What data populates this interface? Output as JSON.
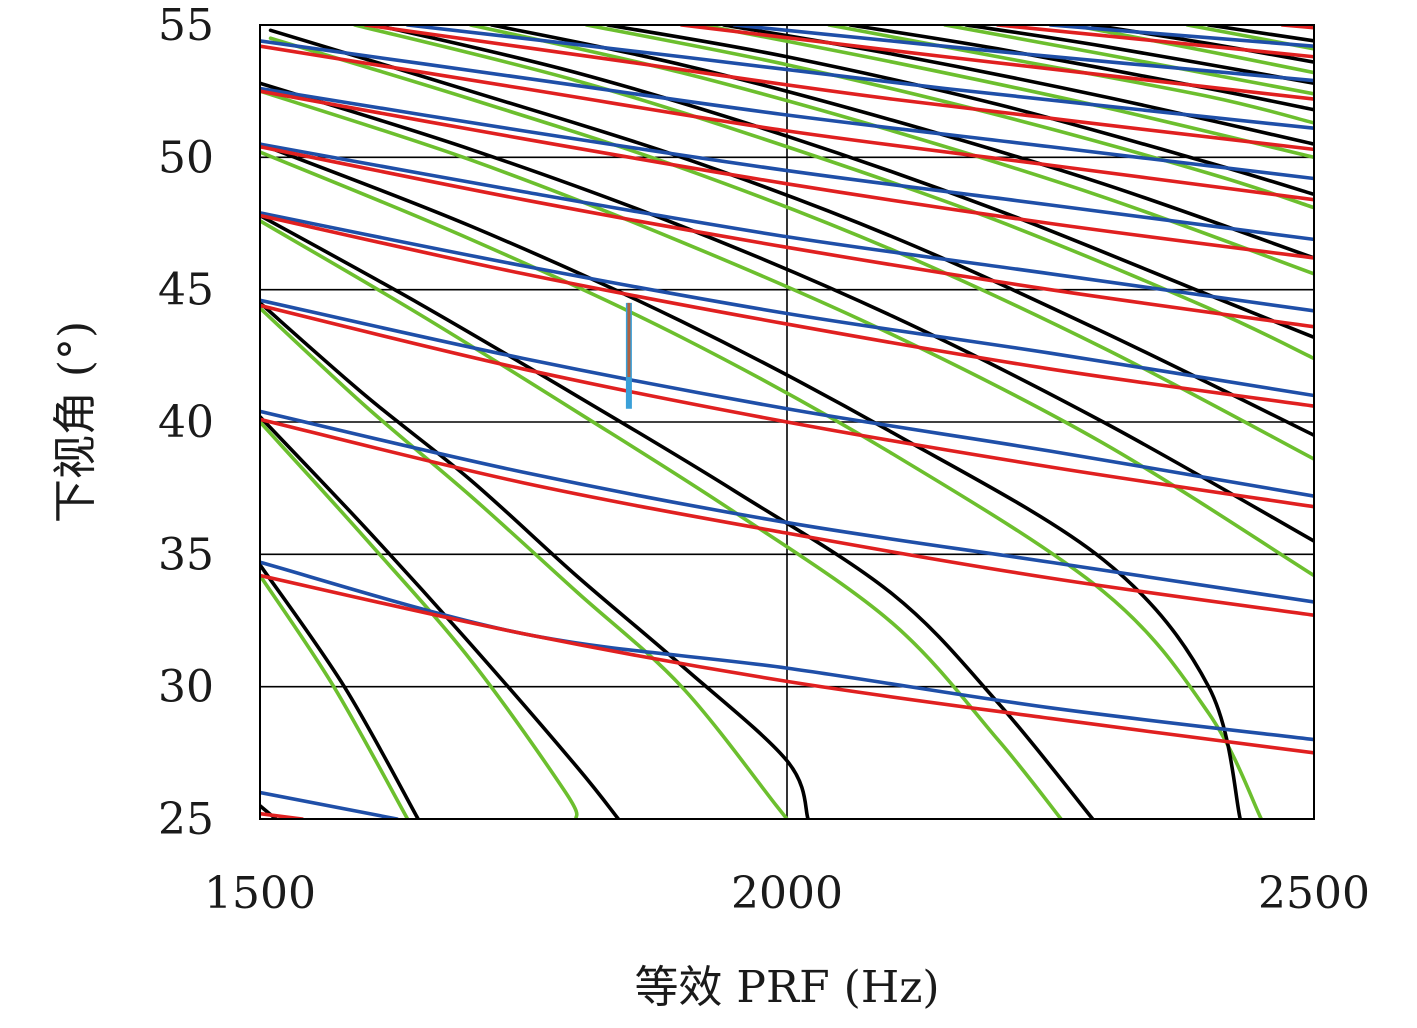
{
  "chart_data": {
    "type": "line",
    "title": "",
    "xlabel": "等效 PRF (Hz)",
    "ylabel": "下视角 (°)",
    "xlim": [
      1500,
      2500
    ],
    "ylim": [
      25,
      55
    ],
    "x_ticks": [
      "1500",
      "2000",
      "2500"
    ],
    "y_ticks": [
      "25",
      "30",
      "35",
      "40",
      "45",
      "50",
      "55"
    ],
    "grid": "x=2000 and y=30,35,40,45,50 (black lines)",
    "legend": "none",
    "colors": {
      "transmit_interference_black": "#000000",
      "transmit_interference_green": "#6cbf2e",
      "nadir_echo_blue": "#1f4fa8",
      "nadir_echo_red": "#e02020",
      "design_point_marker": "#3aa0d8"
    },
    "series": [
      {
        "color": "black",
        "kind": "transmit-interference bands",
        "lines": [
          [
            [
              1500,
              25.5
            ],
            [
              1515,
              25
            ]
          ],
          [
            [
              1500,
              34.6
            ],
            [
              1580,
              30.0
            ],
            [
              1650,
              25
            ]
          ],
          [
            [
              1500,
              40.2
            ],
            [
              1600,
              36.0
            ],
            [
              1700,
              31.6
            ],
            [
              1800,
              27.0
            ],
            [
              1840,
              25
            ]
          ],
          [
            [
              1500,
              44.5
            ],
            [
              1600,
              41.0
            ],
            [
              1700,
              37.8
            ],
            [
              1800,
              34.2
            ],
            [
              1900,
              30.8
            ],
            [
              2000,
              27.2
            ],
            [
              2020,
              25
            ]
          ],
          [
            [
              1500,
              47.8
            ],
            [
              1650,
              44.5
            ],
            [
              1800,
              41.0
            ],
            [
              1950,
              37.4
            ],
            [
              2100,
              33.5
            ],
            [
              2200,
              29.4
            ],
            [
              2290,
              25
            ]
          ],
          [
            [
              1500,
              50.5
            ],
            [
              1700,
              47.4
            ],
            [
              1900,
              43.8
            ],
            [
              2100,
              39.6
            ],
            [
              2300,
              34.8
            ],
            [
              2400,
              30.0
            ],
            [
              2430,
              25
            ]
          ],
          [
            [
              1500,
              52.8
            ],
            [
              1700,
              50.3
            ],
            [
              1900,
              47.4
            ],
            [
              2100,
              44.0
            ],
            [
              2300,
              40.0
            ],
            [
              2500,
              35.5
            ]
          ],
          [
            [
              1510,
              54.8
            ],
            [
              1700,
              52.5
            ],
            [
              1900,
              50.0
            ],
            [
              2100,
              47.0
            ],
            [
              2300,
              43.4
            ],
            [
              2500,
              39.5
            ]
          ],
          [
            [
              1610,
              55.0
            ],
            [
              1800,
              53.2
            ],
            [
              2000,
              50.8
            ],
            [
              2200,
              48.0
            ],
            [
              2400,
              44.8
            ],
            [
              2500,
              43.2
            ]
          ],
          [
            [
              1720,
              55.0
            ],
            [
              1900,
              53.5
            ],
            [
              2100,
              51.4
            ],
            [
              2300,
              49.0
            ],
            [
              2500,
              46.2
            ]
          ],
          [
            [
              1830,
              55.0
            ],
            [
              2000,
              53.8
            ],
            [
              2200,
              52.0
            ],
            [
              2400,
              49.8
            ],
            [
              2500,
              48.6
            ]
          ],
          [
            [
              1940,
              55.0
            ],
            [
              2100,
              53.9
            ],
            [
              2300,
              52.3
            ],
            [
              2500,
              50.5
            ]
          ],
          [
            [
              2060,
              55.0
            ],
            [
              2200,
              54.1
            ],
            [
              2400,
              52.6
            ],
            [
              2500,
              51.8
            ]
          ],
          [
            [
              2170,
              55.0
            ],
            [
              2300,
              54.2
            ],
            [
              2500,
              52.8
            ]
          ],
          [
            [
              2290,
              55.0
            ],
            [
              2400,
              54.3
            ],
            [
              2500,
              53.6
            ]
          ],
          [
            [
              2400,
              55.0
            ],
            [
              2500,
              54.4
            ]
          ]
        ]
      },
      {
        "color": "green",
        "kind": "transmit-interference bands",
        "lines": [
          [
            [
              1500,
              34.2
            ],
            [
              1570,
              30.0
            ],
            [
              1640,
              25
            ]
          ],
          [
            [
              1500,
              40.0
            ],
            [
              1600,
              35.6
            ],
            [
              1700,
              31.0
            ],
            [
              1790,
              26.0
            ],
            [
              1800,
              25
            ]
          ],
          [
            [
              1500,
              44.3
            ],
            [
              1600,
              40.6
            ],
            [
              1700,
              37.2
            ],
            [
              1800,
              33.6
            ],
            [
              1900,
              30.0
            ],
            [
              1990,
              25.5
            ],
            [
              2000,
              25
            ]
          ],
          [
            [
              1500,
              47.6
            ],
            [
              1650,
              44.1
            ],
            [
              1800,
              40.4
            ],
            [
              1950,
              36.6
            ],
            [
              2100,
              32.4
            ],
            [
              2200,
              28.0
            ],
            [
              2260,
              25
            ]
          ],
          [
            [
              1500,
              50.2
            ],
            [
              1700,
              46.9
            ],
            [
              1900,
              43.2
            ],
            [
              2100,
              38.8
            ],
            [
              2300,
              33.6
            ],
            [
              2400,
              29.0
            ],
            [
              2450,
              25
            ]
          ],
          [
            [
              1500,
              52.5
            ],
            [
              1700,
              49.9
            ],
            [
              1900,
              46.8
            ],
            [
              2100,
              43.3
            ],
            [
              2300,
              39.2
            ],
            [
              2500,
              34.2
            ]
          ],
          [
            [
              1510,
              54.5
            ],
            [
              1700,
              52.2
            ],
            [
              1900,
              49.6
            ],
            [
              2100,
              46.5
            ],
            [
              2300,
              42.8
            ],
            [
              2500,
              38.6
            ]
          ],
          [
            [
              1590,
              55.0
            ],
            [
              1800,
              52.9
            ],
            [
              2000,
              50.4
            ],
            [
              2200,
              47.6
            ],
            [
              2400,
              44.3
            ],
            [
              2500,
              42.4
            ]
          ],
          [
            [
              1700,
              55.0
            ],
            [
              1900,
              53.2
            ],
            [
              2100,
              51.0
            ],
            [
              2300,
              48.5
            ],
            [
              2500,
              45.6
            ]
          ],
          [
            [
              1810,
              55.0
            ],
            [
              2000,
              53.5
            ],
            [
              2200,
              51.6
            ],
            [
              2400,
              49.4
            ],
            [
              2500,
              48.1
            ]
          ],
          [
            [
              1920,
              55.0
            ],
            [
              2100,
              53.6
            ],
            [
              2300,
              51.9
            ],
            [
              2500,
              50.0
            ]
          ],
          [
            [
              2040,
              55.0
            ],
            [
              2200,
              53.8
            ],
            [
              2400,
              52.3
            ],
            [
              2500,
              51.3
            ]
          ],
          [
            [
              2150,
              55.0
            ],
            [
              2300,
              53.9
            ],
            [
              2500,
              52.4
            ]
          ],
          [
            [
              2270,
              55.0
            ],
            [
              2400,
              54.0
            ],
            [
              2500,
              53.2
            ]
          ],
          [
            [
              2380,
              55.0
            ],
            [
              2500,
              54.1
            ]
          ]
        ]
      },
      {
        "color": "blue",
        "kind": "nadir-echo bands",
        "lines": [
          [
            [
              1500,
              26.0
            ],
            [
              1630,
              25.0
            ]
          ],
          [
            [
              1500,
              34.7
            ],
            [
              1750,
              32.0
            ],
            [
              2000,
              30.7
            ],
            [
              2250,
              29.2
            ],
            [
              2500,
              28.0
            ]
          ],
          [
            [
              1500,
              40.4
            ],
            [
              1750,
              38.1
            ],
            [
              2000,
              36.2
            ],
            [
              2250,
              34.7
            ],
            [
              2500,
              33.2
            ]
          ],
          [
            [
              1500,
              44.6
            ],
            [
              1750,
              42.4
            ],
            [
              2000,
              40.5
            ],
            [
              2250,
              38.9
            ],
            [
              2500,
              37.2
            ]
          ],
          [
            [
              1500,
              47.9
            ],
            [
              1750,
              45.9
            ],
            [
              2000,
              44.1
            ],
            [
              2250,
              42.6
            ],
            [
              2500,
              41.0
            ]
          ],
          [
            [
              1500,
              50.5
            ],
            [
              1750,
              48.7
            ],
            [
              2000,
              47.0
            ],
            [
              2250,
              45.6
            ],
            [
              2500,
              44.2
            ]
          ],
          [
            [
              1500,
              52.6
            ],
            [
              1750,
              51.0
            ],
            [
              2000,
              49.5
            ],
            [
              2250,
              48.2
            ],
            [
              2500,
              46.9
            ]
          ],
          [
            [
              1500,
              54.4
            ],
            [
              1750,
              53.0
            ],
            [
              2000,
              51.6
            ],
            [
              2250,
              50.4
            ],
            [
              2500,
              49.2
            ]
          ],
          [
            [
              1640,
              55.0
            ],
            [
              1900,
              53.8
            ],
            [
              2150,
              52.6
            ],
            [
              2500,
              51.1
            ]
          ],
          [
            [
              1950,
              55.0
            ],
            [
              2200,
              54.0
            ],
            [
              2500,
              52.9
            ]
          ],
          [
            [
              2250,
              55.0
            ],
            [
              2500,
              54.2
            ]
          ]
        ]
      },
      {
        "color": "red",
        "kind": "nadir-echo bands",
        "lines": [
          [
            [
              1500,
              25.2
            ],
            [
              1540,
              25.0
            ]
          ],
          [
            [
              1500,
              34.2
            ],
            [
              1750,
              32.0
            ],
            [
              2000,
              30.2
            ],
            [
              2250,
              28.8
            ],
            [
              2500,
              27.5
            ]
          ],
          [
            [
              1500,
              40.1
            ],
            [
              1750,
              37.7
            ],
            [
              2000,
              35.8
            ],
            [
              2250,
              34.1
            ],
            [
              2500,
              32.7
            ]
          ],
          [
            [
              1500,
              44.4
            ],
            [
              1750,
              42.0
            ],
            [
              2000,
              40.0
            ],
            [
              2250,
              38.3
            ],
            [
              2500,
              36.8
            ]
          ],
          [
            [
              1500,
              47.8
            ],
            [
              1750,
              45.6
            ],
            [
              2000,
              43.7
            ],
            [
              2250,
              42.0
            ],
            [
              2500,
              40.6
            ]
          ],
          [
            [
              1500,
              50.4
            ],
            [
              1750,
              48.4
            ],
            [
              2000,
              46.6
            ],
            [
              2250,
              45.0
            ],
            [
              2500,
              43.6
            ]
          ],
          [
            [
              1500,
              52.5
            ],
            [
              1750,
              50.7
            ],
            [
              2000,
              49.0
            ],
            [
              2250,
              47.5
            ],
            [
              2500,
              46.2
            ]
          ],
          [
            [
              1500,
              54.2
            ],
            [
              1750,
              52.6
            ],
            [
              2000,
              51.0
            ],
            [
              2250,
              49.7
            ],
            [
              2500,
              48.4
            ]
          ],
          [
            [
              1600,
              55.0
            ],
            [
              1850,
              53.6
            ],
            [
              2100,
              52.2
            ],
            [
              2500,
              50.3
            ]
          ],
          [
            [
              1900,
              55.0
            ],
            [
              2150,
              53.8
            ],
            [
              2500,
              52.2
            ]
          ],
          [
            [
              2200,
              55.0
            ],
            [
              2500,
              53.8
            ]
          ],
          [
            [
              2470,
              55.0
            ],
            [
              2500,
              54.9
            ]
          ]
        ]
      }
    ],
    "marker": {
      "description": "vertical design-point bar",
      "x": 1850,
      "y_range": [
        40.5,
        44.5
      ],
      "color": "#3aa0d8"
    }
  }
}
